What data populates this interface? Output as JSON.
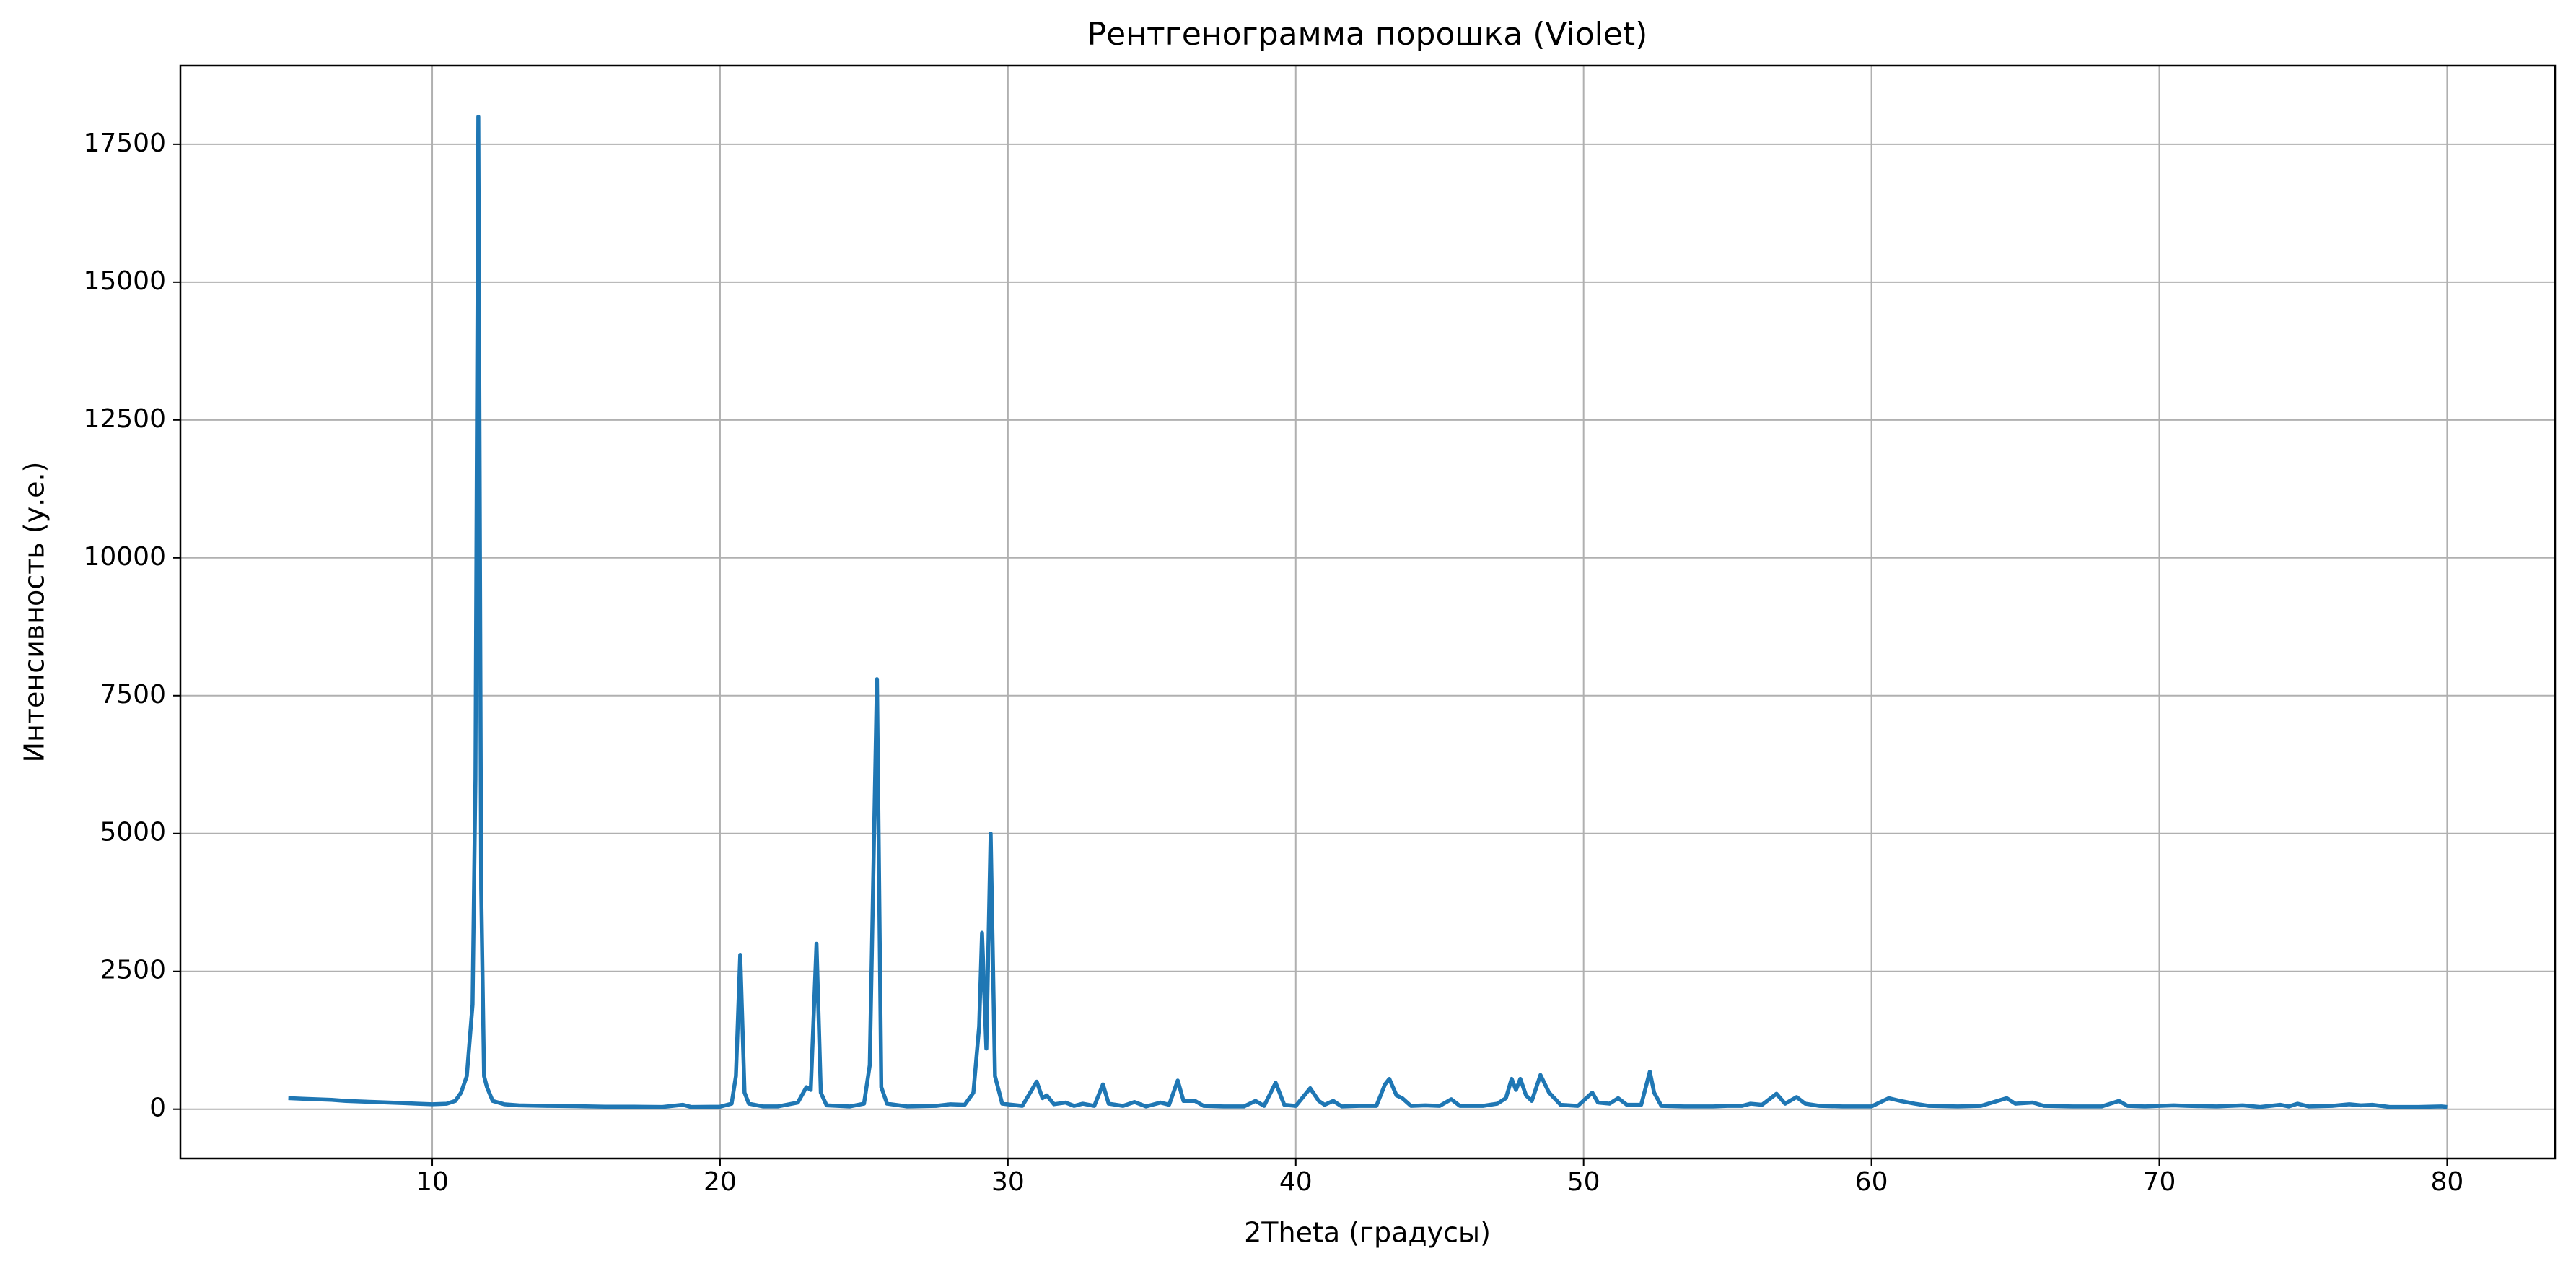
{
  "chart_data": {
    "type": "line",
    "title": "Рентгенограмма порошка (Violet)",
    "xlabel": "2Theta (градусы)",
    "ylabel": "Интенсивность (у.е.)",
    "color": "#1f77b4",
    "grid": true,
    "xlim": [
      1.25,
      83.75
    ],
    "ylim": [
      -894,
      18925
    ],
    "xticks": [
      10,
      20,
      30,
      40,
      50,
      60,
      70,
      80
    ],
    "yticks": [
      0,
      2500,
      5000,
      7500,
      10000,
      12500,
      15000,
      17500
    ],
    "x": [
      5,
      5.5,
      6,
      6.5,
      7,
      7.5,
      8,
      8.5,
      9,
      9.5,
      10,
      10.5,
      10.8,
      11,
      11.2,
      11.4,
      11.5,
      11.6,
      11.7,
      11.8,
      11.9,
      12.1,
      12.5,
      13,
      14,
      15,
      16,
      17,
      18,
      18.7,
      19,
      20,
      20.4,
      20.55,
      20.7,
      20.85,
      21,
      21.5,
      22,
      22.7,
      23,
      23.15,
      23.35,
      23.5,
      23.7,
      24.5,
      25,
      25.2,
      25.45,
      25.6,
      25.8,
      26.5,
      27.5,
      28,
      28.5,
      28.8,
      29,
      29.1,
      29.25,
      29.4,
      29.55,
      29.8,
      30.5,
      31,
      31.2,
      31.35,
      31.6,
      32,
      32.3,
      32.6,
      33,
      33.3,
      33.5,
      34,
      34.4,
      34.8,
      35.3,
      35.6,
      35.9,
      36.1,
      36.5,
      36.8,
      37.5,
      38.2,
      38.6,
      38.9,
      39.3,
      39.6,
      40,
      40.5,
      40.8,
      41,
      41.3,
      41.6,
      42.2,
      42.8,
      43.1,
      43.25,
      43.5,
      43.7,
      44,
      44.5,
      45,
      45.4,
      45.7,
      46.5,
      47,
      47.3,
      47.5,
      47.65,
      47.8,
      48,
      48.2,
      48.5,
      48.8,
      49.2,
      49.8,
      50.3,
      50.5,
      50.9,
      51.2,
      51.5,
      52,
      52.3,
      52.45,
      52.7,
      53.5,
      54.5,
      55,
      55.5,
      55.8,
      56.2,
      56.7,
      57,
      57.4,
      57.7,
      58.2,
      59,
      60,
      60.6,
      61,
      61.5,
      62,
      63,
      63.8,
      64.7,
      65,
      65.6,
      66,
      67,
      68,
      68.6,
      68.9,
      69.5,
      70,
      70.5,
      71,
      72,
      72.9,
      73.5,
      74.2,
      74.5,
      74.8,
      75.2,
      76,
      76.6,
      77,
      77.4,
      78,
      79,
      79.8,
      80
    ],
    "values": [
      200,
      190,
      180,
      170,
      150,
      140,
      130,
      120,
      110,
      100,
      90,
      100,
      150,
      300,
      600,
      1900,
      6000,
      18000,
      4000,
      600,
      400,
      150,
      90,
      70,
      60,
      55,
      45,
      45,
      40,
      80,
      40,
      45,
      100,
      600,
      2800,
      300,
      100,
      50,
      50,
      120,
      400,
      350,
      3000,
      300,
      70,
      50,
      100,
      800,
      7800,
      400,
      100,
      50,
      60,
      90,
      80,
      300,
      1500,
      3200,
      1100,
      5000,
      600,
      100,
      60,
      500,
      200,
      250,
      90,
      120,
      60,
      100,
      60,
      450,
      100,
      60,
      130,
      50,
      120,
      80,
      520,
      150,
      150,
      60,
      50,
      50,
      150,
      60,
      480,
      80,
      60,
      380,
      150,
      80,
      150,
      50,
      60,
      60,
      450,
      550,
      250,
      200,
      60,
      70,
      60,
      180,
      60,
      60,
      100,
      200,
      550,
      350,
      550,
      250,
      150,
      620,
      300,
      80,
      60,
      300,
      120,
      100,
      200,
      80,
      80,
      680,
      300,
      60,
      50,
      50,
      60,
      60,
      100,
      80,
      280,
      100,
      220,
      100,
      60,
      50,
      50,
      200,
      150,
      100,
      60,
      50,
      60,
      200,
      100,
      120,
      60,
      50,
      50,
      150,
      60,
      50,
      60,
      70,
      60,
      50,
      70,
      40,
      80,
      50,
      100,
      50,
      60,
      90,
      70,
      80,
      40,
      40,
      50,
      40
    ]
  }
}
